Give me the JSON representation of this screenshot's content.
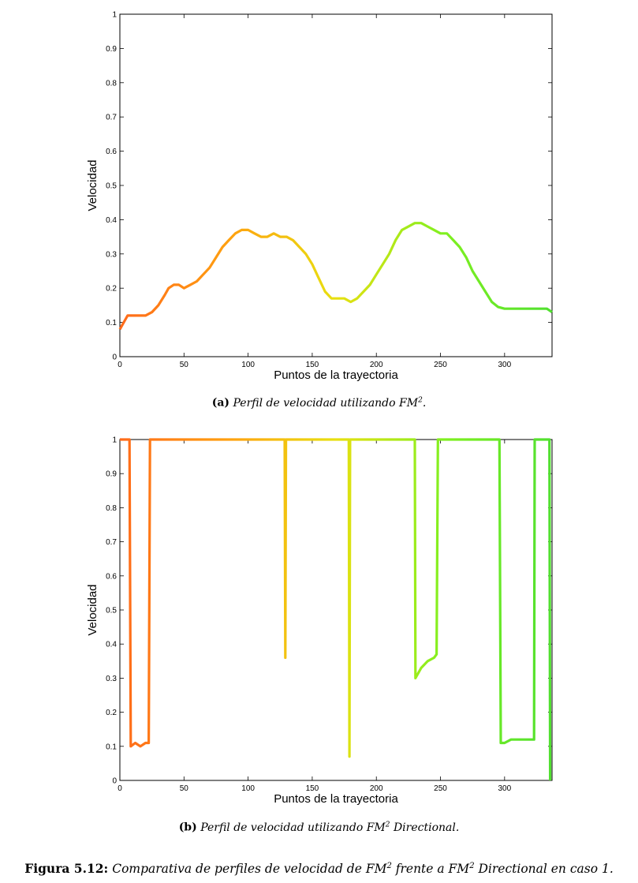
{
  "chart_data": [
    {
      "type": "line",
      "xlabel": "Puntos de la trayectoria",
      "ylabel": "Velocidad",
      "xlim": [
        0,
        337
      ],
      "ylim": [
        0,
        1
      ],
      "xticks": [
        0,
        50,
        100,
        150,
        200,
        250,
        300
      ],
      "yticks": [
        0,
        0.1,
        0.2,
        0.3,
        0.4,
        0.5,
        0.6,
        0.7,
        0.8,
        0.9,
        1
      ],
      "grid": false,
      "line_gradient": [
        "#ff6a1a",
        "#ffa010",
        "#e8e010",
        "#80f020",
        "#50e030"
      ],
      "x": [
        0,
        3,
        6,
        10,
        15,
        20,
        25,
        30,
        35,
        38,
        42,
        46,
        50,
        55,
        60,
        65,
        70,
        75,
        80,
        85,
        90,
        95,
        100,
        105,
        110,
        115,
        120,
        125,
        130,
        135,
        140,
        145,
        150,
        155,
        160,
        165,
        170,
        175,
        180,
        185,
        190,
        195,
        200,
        205,
        210,
        215,
        220,
        225,
        230,
        235,
        240,
        245,
        250,
        255,
        260,
        265,
        270,
        275,
        280,
        285,
        290,
        295,
        300,
        305,
        310,
        315,
        320,
        325,
        330,
        333,
        337
      ],
      "values": [
        0.08,
        0.1,
        0.12,
        0.12,
        0.12,
        0.12,
        0.13,
        0.15,
        0.18,
        0.2,
        0.21,
        0.21,
        0.2,
        0.21,
        0.22,
        0.24,
        0.26,
        0.29,
        0.32,
        0.34,
        0.36,
        0.37,
        0.37,
        0.36,
        0.35,
        0.35,
        0.36,
        0.35,
        0.35,
        0.34,
        0.32,
        0.3,
        0.27,
        0.23,
        0.19,
        0.17,
        0.17,
        0.17,
        0.16,
        0.17,
        0.19,
        0.21,
        0.24,
        0.27,
        0.3,
        0.34,
        0.37,
        0.38,
        0.39,
        0.39,
        0.38,
        0.37,
        0.36,
        0.36,
        0.34,
        0.32,
        0.29,
        0.25,
        0.22,
        0.19,
        0.16,
        0.145,
        0.14,
        0.14,
        0.14,
        0.14,
        0.14,
        0.14,
        0.14,
        0.14,
        0.13
      ]
    },
    {
      "type": "line",
      "xlabel": "Puntos de la trayectoria",
      "ylabel": "Velocidad",
      "xlim": [
        0,
        337
      ],
      "ylim": [
        0,
        1
      ],
      "xticks": [
        0,
        50,
        100,
        150,
        200,
        250,
        300
      ],
      "yticks": [
        0,
        0.1,
        0.2,
        0.3,
        0.4,
        0.5,
        0.6,
        0.7,
        0.8,
        0.9,
        1
      ],
      "grid": false,
      "line_gradient": [
        "#ff6a1a",
        "#ffa010",
        "#e8e010",
        "#80f020",
        "#50e030"
      ],
      "x": [
        0,
        7.5,
        8.5,
        12,
        16,
        20,
        22.5,
        23.5,
        128.5,
        129,
        129.5,
        178.5,
        179,
        179.5,
        230,
        230.5,
        235,
        240,
        245,
        247,
        248,
        296,
        297,
        300,
        305,
        310,
        315,
        320,
        323,
        323.5,
        335,
        335.5
      ],
      "values": [
        1,
        1,
        0.1,
        0.11,
        0.1,
        0.11,
        0.11,
        1,
        1,
        0.36,
        1,
        1,
        0.07,
        1,
        1,
        0.3,
        0.33,
        0.35,
        0.36,
        0.37,
        1,
        1,
        0.11,
        0.11,
        0.12,
        0.12,
        0.12,
        0.12,
        0.12,
        1,
        1,
        0
      ]
    }
  ],
  "captions": [
    {
      "label": "(a)",
      "text": "Perfil de velocidad utilizando FM",
      "sup": "2",
      "after": "."
    },
    {
      "label": "(b)",
      "text": "Perfil de velocidad utilizando FM",
      "sup": "2",
      "after": " Directional."
    }
  ],
  "figure_caption": {
    "label": "Figura 5.12:",
    "t1": "Comparativa de perfiles de velocidad de FM",
    "s1": "2",
    "t2": " frente a FM",
    "s2": "2",
    "t3": " Directional en caso 1."
  }
}
